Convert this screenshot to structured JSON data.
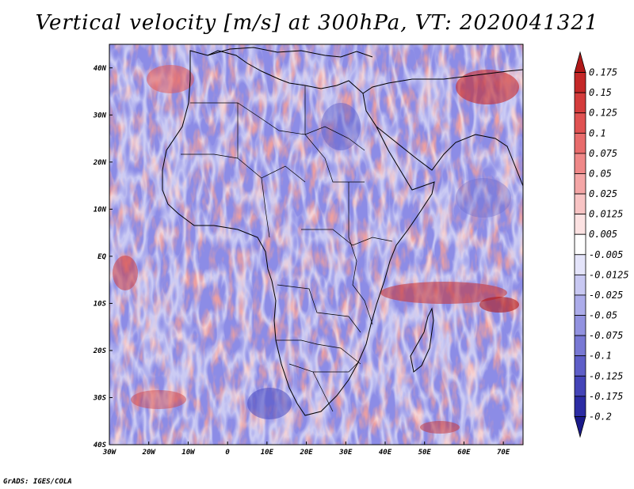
{
  "title": "Vertical velocity [m/s] at 300hPa, VT: 2020041321",
  "credit": "GrADS: IGES/COLA",
  "chart_data": {
    "type": "heatmap",
    "title": "Vertical velocity [m/s] at 300hPa, VT: 2020041321",
    "variable": "Vertical velocity",
    "units": "m/s",
    "level": "300hPa",
    "valid_time": "2020041321",
    "x_range": [
      -30,
      75
    ],
    "y_range": [
      -40,
      45
    ],
    "x_ticks": [
      {
        "value": -30,
        "label": "30W"
      },
      {
        "value": -20,
        "label": "20W"
      },
      {
        "value": -10,
        "label": "10W"
      },
      {
        "value": 0,
        "label": "0"
      },
      {
        "value": 10,
        "label": "10E"
      },
      {
        "value": 20,
        "label": "20E"
      },
      {
        "value": 30,
        "label": "30E"
      },
      {
        "value": 40,
        "label": "40E"
      },
      {
        "value": 50,
        "label": "50E"
      },
      {
        "value": 60,
        "label": "60E"
      },
      {
        "value": 70,
        "label": "70E"
      }
    ],
    "y_ticks": [
      {
        "value": 40,
        "label": "40N"
      },
      {
        "value": 30,
        "label": "30N"
      },
      {
        "value": 20,
        "label": "20N"
      },
      {
        "value": 10,
        "label": "10N"
      },
      {
        "value": 0,
        "label": "EQ"
      },
      {
        "value": -10,
        "label": "10S"
      },
      {
        "value": -20,
        "label": "20S"
      },
      {
        "value": -30,
        "label": "30S"
      },
      {
        "value": -40,
        "label": "40S"
      }
    ],
    "colorbar": {
      "labels": [
        "0.175",
        "0.15",
        "0.125",
        "0.1",
        "0.075",
        "0.05",
        "0.025",
        "0.0125",
        "0.005",
        "-0.005",
        "-0.0125",
        "-0.025",
        "-0.05",
        "-0.075",
        "-0.1",
        "-0.125",
        "-0.175",
        "-0.2"
      ],
      "colors": [
        "#b01818",
        "#c42828",
        "#d43c3c",
        "#e05252",
        "#e86c6c",
        "#ef8888",
        "#f4a6a6",
        "#f8c4c4",
        "#fce2e2",
        "#ffffff",
        "#e4e4fa",
        "#c8c8f2",
        "#acacea",
        "#9292e0",
        "#7878d4",
        "#5e5ec8",
        "#4444b8",
        "#2c2ca4",
        "#1a1a8a"
      ]
    }
  }
}
